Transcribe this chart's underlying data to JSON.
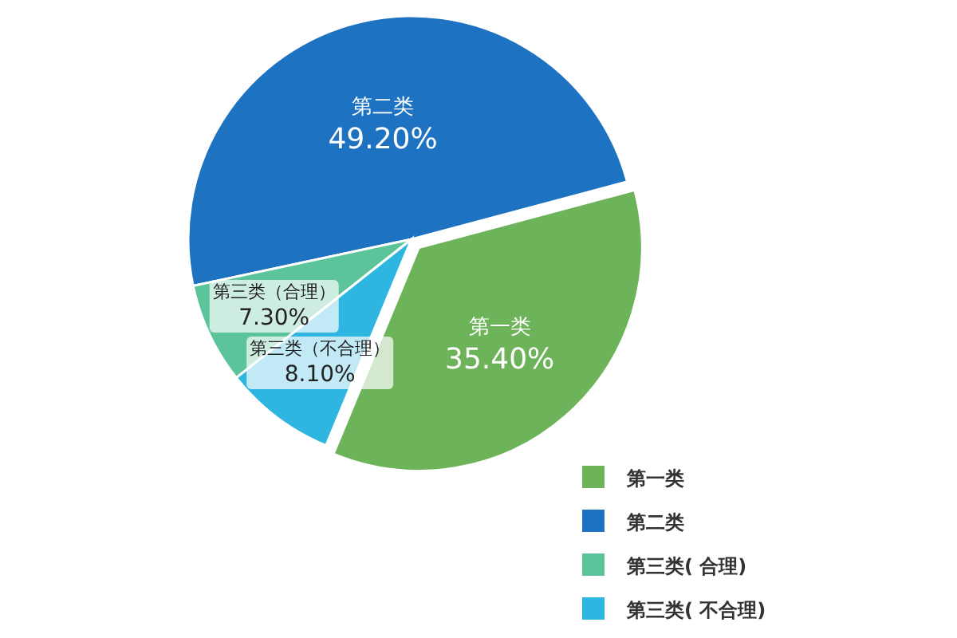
{
  "chart_data": {
    "type": "pie",
    "categories": [
      "第一类",
      "第二类",
      "第三类( 合理)",
      "第三类( 不合理)"
    ],
    "values": [
      35.4,
      49.2,
      7.3,
      8.1
    ],
    "colors": [
      "#6db35a",
      "#1e72c2",
      "#5cc49a",
      "#2fb6e0"
    ],
    "value_labels": [
      "第一类\n35.40%",
      "第二类\n49.20%",
      "第三类（合理）\n7.30%",
      "第三类（不合理）\n8.10%"
    ],
    "legend": "bottom right"
  }
}
